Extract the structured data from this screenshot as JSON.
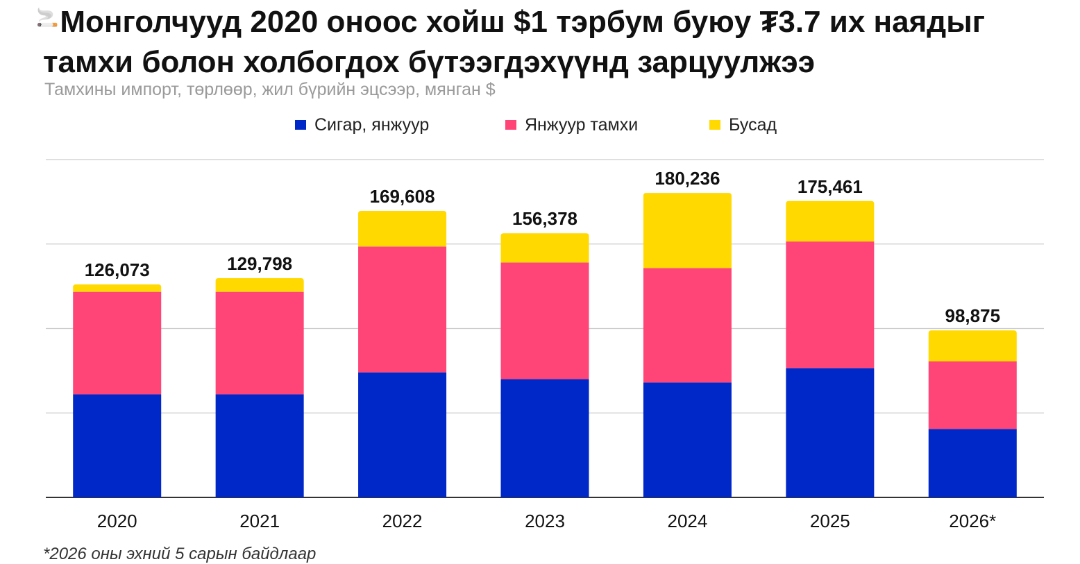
{
  "title": "Монголчууд 2020 оноос хойш $1 тэрбум буюу ₮3.7 их наядыг тамхи болон холбогдох бүтээгдэхүүнд зарцуулжээ",
  "title_icon": "cigarette-icon",
  "subtitle": "Тамхины импорт, төрлөөр, жил бүрийн эцсээр, мянган $",
  "footnote": "*2026 оны эхний 5 сарын байдлаар",
  "chart_data": {
    "type": "bar",
    "stacked": true,
    "categories": [
      "2020",
      "2021",
      "2022",
      "2023",
      "2024",
      "2025",
      "2026*"
    ],
    "series": [
      {
        "name": "Сигар, янжуур",
        "color": "#0027C8",
        "values": [
          61000,
          61000,
          74000,
          70000,
          68000,
          76500,
          40500
        ]
      },
      {
        "name": "Янжуур тамхи",
        "color": "#FF4577",
        "values": [
          60700,
          60700,
          74500,
          69000,
          67800,
          75000,
          40000
        ]
      },
      {
        "name": "Бусад",
        "color": "#FFD900",
        "values": [
          4373,
          8098,
          21108,
          17378,
          44436,
          23961,
          18375
        ]
      }
    ],
    "totals": [
      126073,
      129798,
      169608,
      156378,
      180236,
      175461,
      98875
    ],
    "total_labels": [
      "126,073",
      "129,798",
      "169,608",
      "156,378",
      "180,236",
      "175,461",
      "98,875"
    ],
    "ylim": [
      0,
      200000
    ],
    "gridlines": [
      0,
      50000,
      100000,
      150000,
      200000
    ],
    "y_tick_labels_shown": false,
    "legend_position": "top",
    "grid": true
  }
}
